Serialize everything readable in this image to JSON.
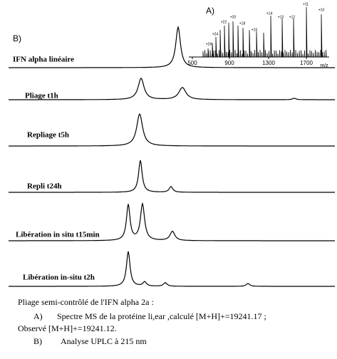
{
  "panel_a": {
    "label": "A)",
    "xticks": [
      "500",
      "900",
      "1300",
      "1700"
    ],
    "xlabel": "m/z",
    "charge_labels": [
      "+26",
      "+24",
      "+22",
      "+20",
      "+18",
      "+16",
      "+14",
      "+13",
      "+12",
      "+11",
      "+10"
    ]
  },
  "panel_b": {
    "label": "B)",
    "traces": [
      "IFN alpha linéaire",
      "Pliage t1h",
      "Repliage t5h",
      "Repli t24h",
      "Libération in situ t15min",
      "Libération in-situ t2h"
    ]
  },
  "caption": {
    "title": "Pliage semi-contrôlé de l'IFN alpha 2a :",
    "items": [
      {
        "marker": "A)",
        "text": "Spectre MS de la protéine li,ear ,calculé [M+H]+=19241.17 ;"
      }
    ],
    "continuation": "Observé [M+H]+=19241.12.",
    "items2": [
      {
        "marker": "B)",
        "text": "Analyse UPLC à 215 nm"
      }
    ]
  }
}
